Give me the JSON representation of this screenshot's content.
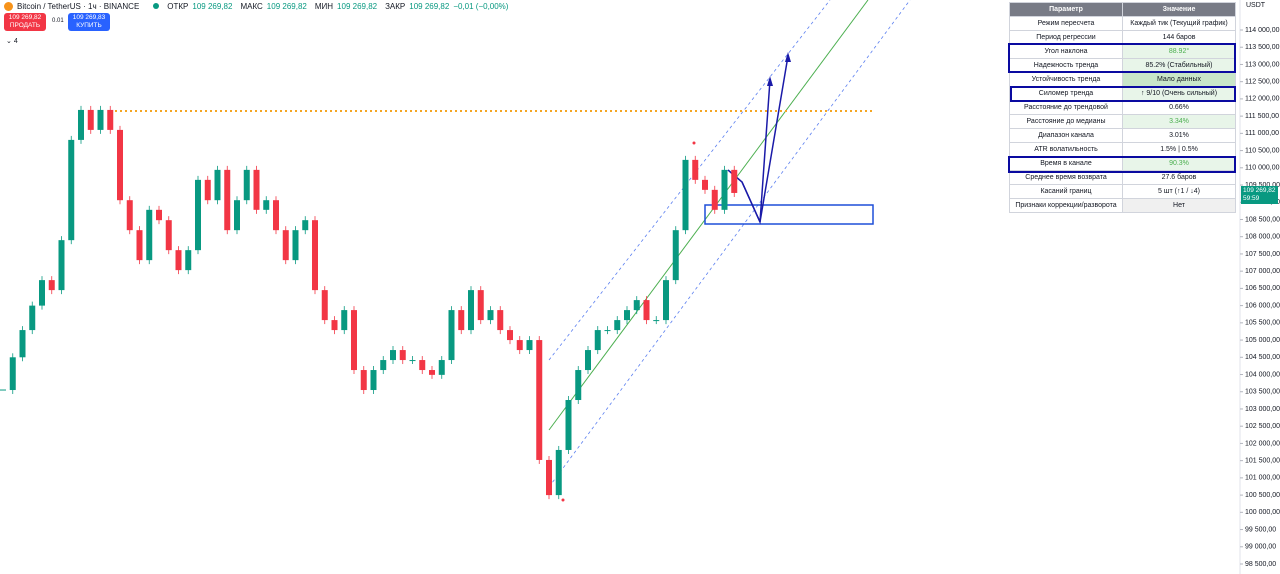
{
  "header": {
    "symbol": "Bitcoin / TetherUS · 1ч · BINANCE",
    "ohlc": [
      {
        "label": "ОТКР",
        "value": "109 269,82"
      },
      {
        "label": "МАКС",
        "value": "109 269,82"
      },
      {
        "label": "МИН",
        "value": "109 269,82"
      },
      {
        "label": "ЗАКР",
        "value": "109 269,82"
      }
    ],
    "change": "−0,01 (−0,00%)"
  },
  "trade": {
    "sell_price": "109 269,82",
    "sell_label": "ПРОДАТЬ",
    "spread": "0.01",
    "buy_price": "109 269,83",
    "buy_label": "КУПИТЬ"
  },
  "indicator_count": "4",
  "chart": {
    "unit": "USDT",
    "current_price": "109 269,82",
    "timer": "59:59",
    "level": 111650,
    "ylim": [
      98500,
      114000
    ],
    "yticks": [
      {
        "value": 114000,
        "label": "114 000,00"
      },
      {
        "value": 113500,
        "label": "113 500,00"
      },
      {
        "value": 113000,
        "label": "113 000,00"
      },
      {
        "value": 112500,
        "label": "112 500,00"
      },
      {
        "value": 112000,
        "label": "112 000,00"
      },
      {
        "value": 111500,
        "label": "111 500,00"
      },
      {
        "value": 111000,
        "label": "111 000,00"
      },
      {
        "value": 110500,
        "label": "110 500,00"
      },
      {
        "value": 110000,
        "label": "110 000,00"
      },
      {
        "value": 109500,
        "label": "109 500,00"
      },
      {
        "value": 109000,
        "label": "109 000,00"
      },
      {
        "value": 108500,
        "label": "108 500,00"
      },
      {
        "value": 108000,
        "label": "108 000,00"
      },
      {
        "value": 107500,
        "label": "107 500,00"
      },
      {
        "value": 107000,
        "label": "107 000,00"
      },
      {
        "value": 106500,
        "label": "106 500,00"
      },
      {
        "value": 106000,
        "label": "106 000,00"
      },
      {
        "value": 105500,
        "label": "105 500,00"
      },
      {
        "value": 105000,
        "label": "105 000,00"
      },
      {
        "value": 104500,
        "label": "104 500,00"
      },
      {
        "value": 104000,
        "label": "104 000,00"
      },
      {
        "value": 103500,
        "label": "103 500,00"
      },
      {
        "value": 103000,
        "label": "103 000,00"
      },
      {
        "value": 102500,
        "label": "102 500,00"
      },
      {
        "value": 102000,
        "label": "102 000,00"
      },
      {
        "value": 101500,
        "label": "101 500,00"
      },
      {
        "value": 101000,
        "label": "101 000,00"
      },
      {
        "value": 100500,
        "label": "100 500,00"
      },
      {
        "value": 100000,
        "label": "100 000,00"
      },
      {
        "value": 99500,
        "label": "99 500,00"
      },
      {
        "value": 99000,
        "label": "99 000,00"
      },
      {
        "value": 98500,
        "label": "98 500,00"
      }
    ],
    "close": [
      103550,
      104500,
      105290,
      106000,
      106740,
      106450,
      107900,
      110810,
      111680,
      111100,
      111680,
      111100,
      109060,
      108190,
      107320,
      108780,
      108480,
      107610,
      107030,
      107610,
      109650,
      109060,
      109940,
      108190,
      109060,
      109940,
      108780,
      109060,
      108190,
      107320,
      108190,
      108480,
      106450,
      105580,
      105290,
      105870,
      104130,
      103550,
      104130,
      104420,
      104710,
      104420,
      104420,
      104130,
      103990,
      104420,
      105870,
      105290,
      106450,
      105580,
      105870,
      105290,
      105000,
      104710,
      105000,
      101520,
      100500,
      101810,
      103260,
      104130,
      104710,
      105290,
      105290,
      105580,
      105870,
      106160,
      105580,
      105580,
      106740,
      108190,
      110230,
      109650,
      109360,
      108780,
      109940,
      109270
    ]
  },
  "table": {
    "headers": [
      "Параметр",
      "Значение"
    ],
    "rows": [
      [
        "Режим пересчета",
        "Каждый тик (Текущий график)"
      ],
      [
        "Период регрессии",
        "144 баров"
      ],
      [
        "Угол наклона",
        "88.92°"
      ],
      [
        "Надежность тренда",
        "85.2% (Стабильный)"
      ],
      [
        "Устойчивость тренда",
        "Мало данных"
      ],
      [
        "Силомер тренда",
        "↑ 9/10 (Очень сильный)"
      ],
      [
        "Расстояние до трендовой",
        "0.66%"
      ],
      [
        "Расстояние до медианы",
        "3.34%"
      ],
      [
        "Диапазон канала",
        "3.01%"
      ],
      [
        "ATR волатильность",
        "1.5% | 0.5%"
      ],
      [
        "Время в канале",
        "90.3%"
      ],
      [
        "Среднее время возврата",
        "27.6 баров"
      ],
      [
        "Касаний границ",
        "5 шт (↑1 / ↓4)"
      ],
      [
        "Признаки коррекции/разворота",
        "Нет"
      ]
    ]
  }
}
